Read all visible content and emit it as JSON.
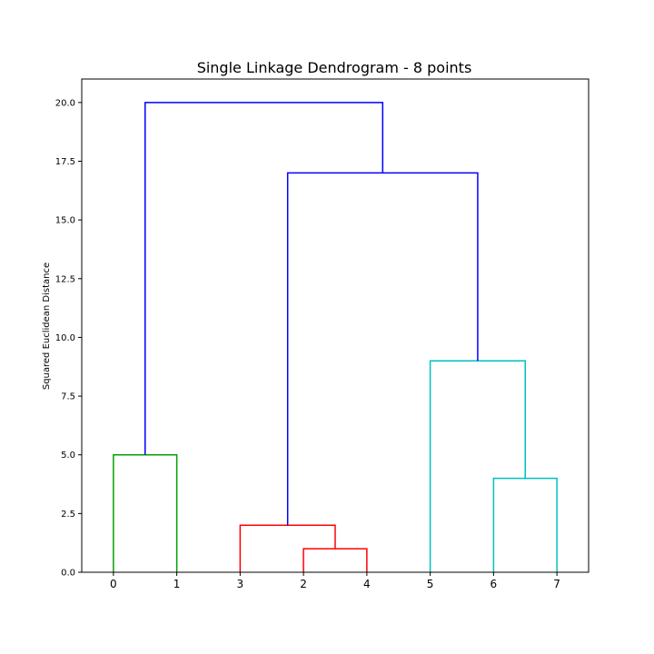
{
  "chart_data": {
    "type": "dendrogram",
    "title": "Single Linkage Dendrogram - 8 points",
    "xlabel": "",
    "ylabel": "Squared Euclidean Distance",
    "ylim": [
      0,
      21
    ],
    "yticks": [
      "0.0",
      "2.5",
      "5.0",
      "7.5",
      "10.0",
      "12.5",
      "15.0",
      "17.5",
      "20.0"
    ],
    "ytick_values": [
      0,
      2.5,
      5,
      7.5,
      10,
      12.5,
      15,
      17.5,
      20
    ],
    "leaf_order": [
      "0",
      "1",
      "3",
      "2",
      "4",
      "5",
      "6",
      "7"
    ],
    "grid": false,
    "colors": {
      "green": "#00a000",
      "red": "#ff0000",
      "cyan": "#00c0c0",
      "blue": "#0000ff"
    },
    "merges": [
      {
        "x": [
          0,
          1
        ],
        "height": 5.0,
        "color": "green",
        "left_height": 0,
        "right_height": 0
      },
      {
        "x": [
          3,
          4
        ],
        "height": 1.0,
        "color": "red",
        "left_height": 0,
        "right_height": 0
      },
      {
        "x": [
          2,
          3.5
        ],
        "height": 2.0,
        "color": "red",
        "left_height": 0,
        "right_height": 1.0
      },
      {
        "x": [
          6,
          7
        ],
        "height": 4.0,
        "color": "cyan",
        "left_height": 0,
        "right_height": 0
      },
      {
        "x": [
          5,
          6.5
        ],
        "height": 9.0,
        "color": "cyan",
        "left_height": 0,
        "right_height": 4.0
      },
      {
        "x": [
          2.75,
          5.75
        ],
        "height": 17.0,
        "color": "blue",
        "left_height": 2.0,
        "right_height": 9.0
      },
      {
        "x": [
          0.5,
          4.25
        ],
        "height": 20.0,
        "color": "blue",
        "left_height": 5.0,
        "right_height": 17.0
      }
    ]
  }
}
